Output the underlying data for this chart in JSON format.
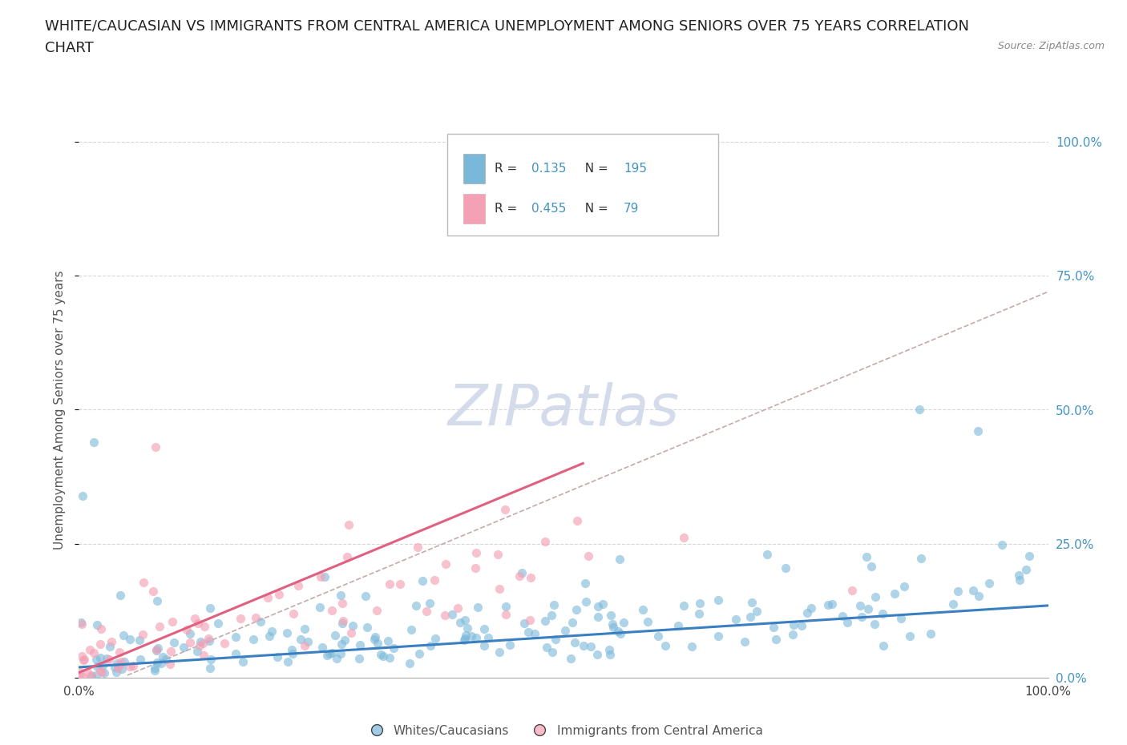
{
  "title_line1": "WHITE/CAUCASIAN VS IMMIGRANTS FROM CENTRAL AMERICA UNEMPLOYMENT AMONG SENIORS OVER 75 YEARS CORRELATION",
  "title_line2": "CHART",
  "source": "Source: ZipAtlas.com",
  "ylabel": "Unemployment Among Seniors over 75 years",
  "xlim": [
    0,
    1.0
  ],
  "ylim": [
    0,
    1.0
  ],
  "ytick_labels": [
    "0.0%",
    "25.0%",
    "50.0%",
    "75.0%",
    "100.0%"
  ],
  "ytick_values": [
    0.0,
    0.25,
    0.5,
    0.75,
    1.0
  ],
  "series1": {
    "name": "Whites/Caucasians",
    "color": "#7ab8d9",
    "line_color": "#3a7fc1",
    "R": 0.135,
    "N": 195
  },
  "series2": {
    "name": "Immigrants from Central America",
    "color": "#f4a0b5",
    "line_color": "#e06080",
    "R": 0.455,
    "N": 79
  },
  "dashed_line_color": "#c0a0a0",
  "watermark_color": "#d0d8e8",
  "background_color": "#ffffff",
  "grid_color": "#cccccc",
  "title_fontsize": 13,
  "axis_label_fontsize": 11,
  "tick_fontsize": 11,
  "seed": 42
}
